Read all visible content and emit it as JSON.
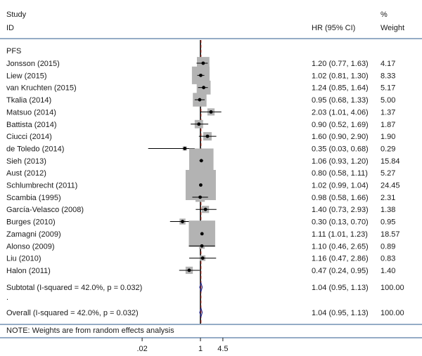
{
  "chart_data": {
    "type": "forest",
    "header": {
      "col1_line1": "Study",
      "col1_line2": "ID",
      "col2": "HR (95% CI)",
      "col3_line1": "%",
      "col3_line2": "Weight"
    },
    "subgroup_label": "PFS",
    "studies": [
      {
        "name": "Jonsson (2015)",
        "hr": 1.2,
        "lo": 0.77,
        "hi": 1.63,
        "ci_text": "1.20 (0.77, 1.63)",
        "weight": 4.17,
        "weight_text": "4.17"
      },
      {
        "name": "Liew (2015)",
        "hr": 1.02,
        "lo": 0.81,
        "hi": 1.3,
        "ci_text": "1.02 (0.81, 1.30)",
        "weight": 8.33,
        "weight_text": "8.33"
      },
      {
        "name": "van Kruchten (2015)",
        "hr": 1.24,
        "lo": 0.85,
        "hi": 1.64,
        "ci_text": "1.24 (0.85, 1.64)",
        "weight": 5.17,
        "weight_text": "5.17"
      },
      {
        "name": "Tkalia (2014)",
        "hr": 0.95,
        "lo": 0.68,
        "hi": 1.33,
        "ci_text": "0.95 (0.68, 1.33)",
        "weight": 5.0,
        "weight_text": "5.00"
      },
      {
        "name": "Matsuo (2014)",
        "hr": 2.03,
        "lo": 1.01,
        "hi": 4.06,
        "ci_text": "2.03 (1.01, 4.06)",
        "weight": 1.37,
        "weight_text": "1.37"
      },
      {
        "name": "Battista (2014)",
        "hr": 0.9,
        "lo": 0.52,
        "hi": 1.69,
        "ci_text": "0.90 (0.52, 1.69)",
        "weight": 1.87,
        "weight_text": "1.87"
      },
      {
        "name": "Ciucci (2014)",
        "hr": 1.6,
        "lo": 0.9,
        "hi": 2.9,
        "ci_text": "1.60 (0.90, 2.90)",
        "weight": 1.9,
        "weight_text": "1.90"
      },
      {
        "name": "de Toledo (2014)",
        "hr": 0.35,
        "lo": 0.03,
        "hi": 0.68,
        "ci_text": "0.35 (0.03, 0.68)",
        "weight": 0.29,
        "weight_text": "0.29"
      },
      {
        "name": "Sieh (2013)",
        "hr": 1.06,
        "lo": 0.93,
        "hi": 1.2,
        "ci_text": "1.06 (0.93, 1.20)",
        "weight": 15.84,
        "weight_text": "15.84"
      },
      {
        "name": "Aust (2012)",
        "hr": 0.8,
        "lo": 0.58,
        "hi": 1.11,
        "ci_text": "0.80 (0.58, 1.11)",
        "weight": 5.27,
        "weight_text": "5.27"
      },
      {
        "name": "Schlumbrecht  (2011)",
        "hr": 1.02,
        "lo": 0.99,
        "hi": 1.04,
        "ci_text": "1.02 (0.99, 1.04)",
        "weight": 24.45,
        "weight_text": "24.45"
      },
      {
        "name": "Scambia (1995)",
        "hr": 0.98,
        "lo": 0.58,
        "hi": 1.66,
        "ci_text": "0.98 (0.58, 1.66)",
        "weight": 2.31,
        "weight_text": "2.31"
      },
      {
        "name": "García-Velasco (2008)",
        "hr": 1.4,
        "lo": 0.73,
        "hi": 2.93,
        "ci_text": "1.40 (0.73, 2.93)",
        "weight": 1.38,
        "weight_text": "1.38"
      },
      {
        "name": "Burges (2010)",
        "hr": 0.3,
        "lo": 0.13,
        "hi": 0.7,
        "ci_text": "0.30 (0.13, 0.70)",
        "weight": 0.95,
        "weight_text": "0.95"
      },
      {
        "name": "Zamagni (2009)",
        "hr": 1.11,
        "lo": 1.01,
        "hi": 1.23,
        "ci_text": "1.11 (1.01, 1.23)",
        "weight": 18.57,
        "weight_text": "18.57"
      },
      {
        "name": "Alonso (2009)",
        "hr": 1.1,
        "lo": 0.46,
        "hi": 2.65,
        "ci_text": "1.10 (0.46, 2.65)",
        "weight": 0.89,
        "weight_text": "0.89"
      },
      {
        "name": "Liu (2010)",
        "hr": 1.16,
        "lo": 0.47,
        "hi": 2.86,
        "ci_text": "1.16 (0.47, 2.86)",
        "weight": 0.83,
        "weight_text": "0.83"
      },
      {
        "name": "Halon (2011)",
        "hr": 0.47,
        "lo": 0.24,
        "hi": 0.95,
        "ci_text": "0.47 (0.24, 0.95)",
        "weight": 1.4,
        "weight_text": "1.40"
      }
    ],
    "subtotal": {
      "label": "Subtotal  (I-squared = 42.0%, p = 0.032)",
      "hr": 1.04,
      "lo": 0.95,
      "hi": 1.13,
      "ci_text": "1.04 (0.95, 1.13)",
      "weight_text": "100.00"
    },
    "separator": ".",
    "overall": {
      "label": "Overall  (I-squared = 42.0%, p = 0.032)",
      "hr": 1.04,
      "lo": 0.95,
      "hi": 1.13,
      "ci_text": "1.04 (0.95, 1.13)",
      "weight_text": "100.00"
    },
    "note": "NOTE: Weights are from random effects analysis",
    "x_scale": "log",
    "x_ticks": [
      {
        "value": 0.02,
        "label": ".02"
      },
      {
        "value": 1,
        "label": "1"
      },
      {
        "value": 4.5,
        "label": "4.5"
      }
    ],
    "null_line": 1,
    "colors": {
      "box": "#b3b3b3",
      "point": "#000000",
      "ci": "#000000",
      "diamond": "#2b2b8c",
      "null_line": "#000000",
      "overall_line": "#c0392b",
      "rule": "#2b5a8c"
    }
  }
}
